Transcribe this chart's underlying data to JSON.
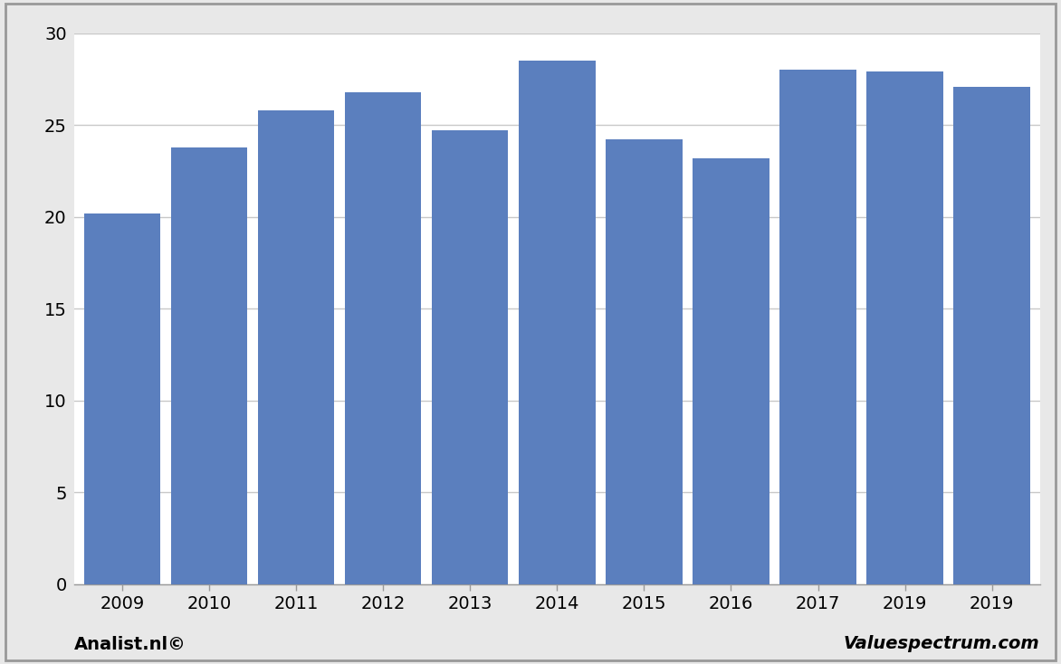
{
  "categories": [
    "2009",
    "2010",
    "2011",
    "2012",
    "2013",
    "2014",
    "2015",
    "2016",
    "2017",
    "2019",
    "2019"
  ],
  "values": [
    20.2,
    23.8,
    25.8,
    26.8,
    24.7,
    28.5,
    24.2,
    23.2,
    28.0,
    27.9,
    27.1
  ],
  "bar_color": "#5b7fbe",
  "ylim": [
    0,
    30
  ],
  "yticks": [
    0,
    5,
    10,
    15,
    20,
    25,
    30
  ],
  "background_color": "#e8e8e8",
  "plot_background_color": "#ffffff",
  "footer_left": "Analist.nl©",
  "footer_right": "Valuespectrum.com",
  "grid_color": "#c8c8c8",
  "border_color": "#999999",
  "tick_label_fontsize": 14,
  "footer_fontsize": 14
}
